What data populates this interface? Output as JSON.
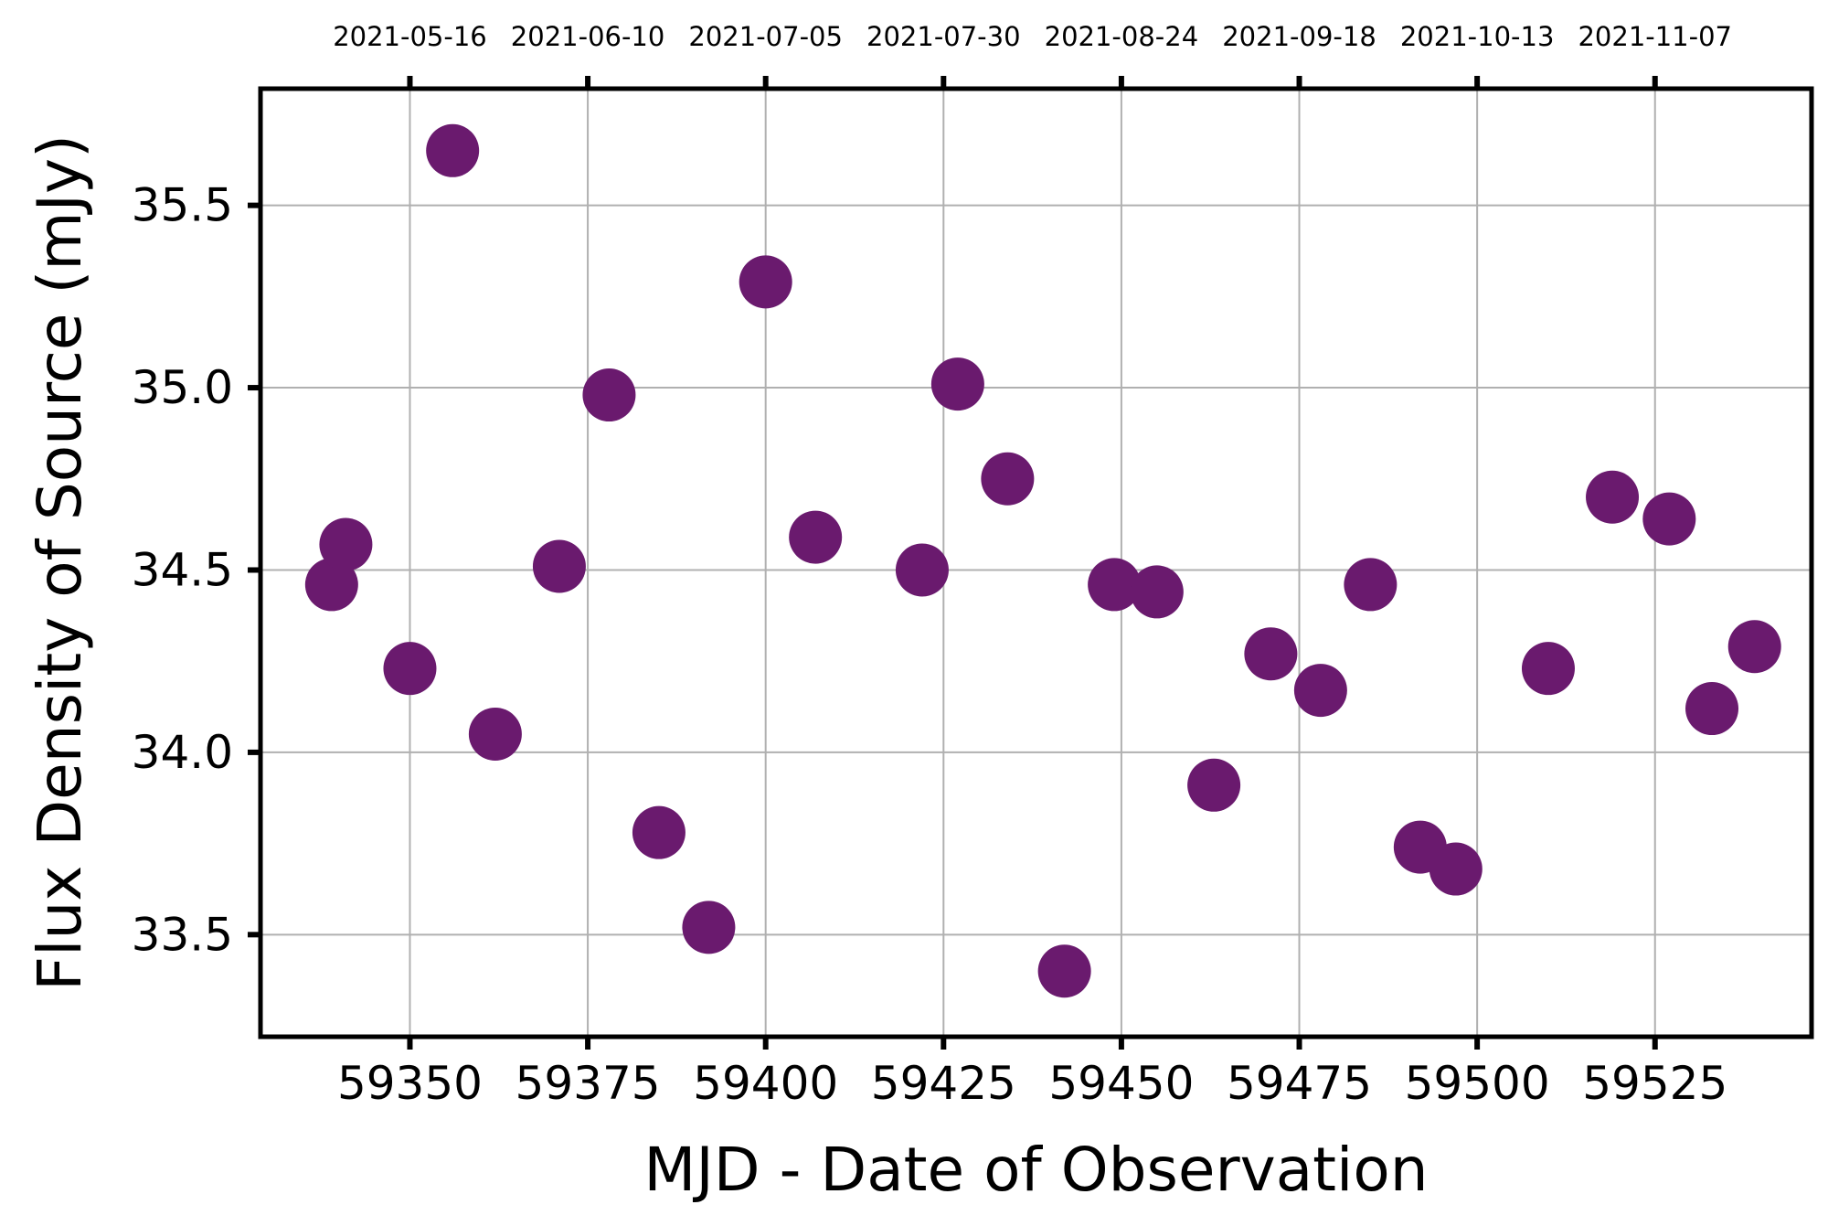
{
  "chart_data": {
    "type": "scatter",
    "xlabel": "MJD - Date of Observation",
    "ylabel": "Flux Density of Source (mJy)",
    "xlim": [
      59329,
      59547
    ],
    "ylim": [
      33.22,
      35.82
    ],
    "x_ticks": [
      59350,
      59375,
      59400,
      59425,
      59450,
      59475,
      59500,
      59525
    ],
    "x_tick_labels": [
      "59350",
      "59375",
      "59400",
      "59425",
      "59450",
      "59475",
      "59500",
      "59525"
    ],
    "top_ticks": [
      59350,
      59375,
      59400,
      59425,
      59450,
      59475,
      59500,
      59525
    ],
    "top_tick_labels": [
      "2021-05-16",
      "2021-06-10",
      "2021-07-05",
      "2021-07-30",
      "2021-08-24",
      "2021-09-18",
      "2021-10-13",
      "2021-11-07"
    ],
    "y_ticks": [
      33.5,
      34.0,
      34.5,
      35.0,
      35.5
    ],
    "y_tick_labels": [
      "33.5",
      "34.0",
      "34.5",
      "35.0",
      "35.5"
    ],
    "grid": true,
    "marker_color": "#6a1a6e",
    "points": [
      {
        "x": 59339,
        "y": 34.46
      },
      {
        "x": 59341,
        "y": 34.57
      },
      {
        "x": 59350,
        "y": 34.23
      },
      {
        "x": 59356,
        "y": 35.65
      },
      {
        "x": 59362,
        "y": 34.05
      },
      {
        "x": 59371,
        "y": 34.51
      },
      {
        "x": 59378,
        "y": 34.98
      },
      {
        "x": 59385,
        "y": 33.78
      },
      {
        "x": 59392,
        "y": 33.52
      },
      {
        "x": 59400,
        "y": 35.29
      },
      {
        "x": 59407,
        "y": 34.59
      },
      {
        "x": 59422,
        "y": 34.5
      },
      {
        "x": 59427,
        "y": 35.01
      },
      {
        "x": 59434,
        "y": 34.75
      },
      {
        "x": 59442,
        "y": 33.4
      },
      {
        "x": 59449,
        "y": 34.46
      },
      {
        "x": 59455,
        "y": 34.44
      },
      {
        "x": 59463,
        "y": 33.91
      },
      {
        "x": 59471,
        "y": 34.27
      },
      {
        "x": 59478,
        "y": 34.17
      },
      {
        "x": 59485,
        "y": 34.46
      },
      {
        "x": 59492,
        "y": 33.74
      },
      {
        "x": 59497,
        "y": 33.68
      },
      {
        "x": 59510,
        "y": 34.23
      },
      {
        "x": 59519,
        "y": 34.7
      },
      {
        "x": 59527,
        "y": 34.64
      },
      {
        "x": 59533,
        "y": 34.12
      },
      {
        "x": 59539,
        "y": 34.29
      }
    ]
  }
}
